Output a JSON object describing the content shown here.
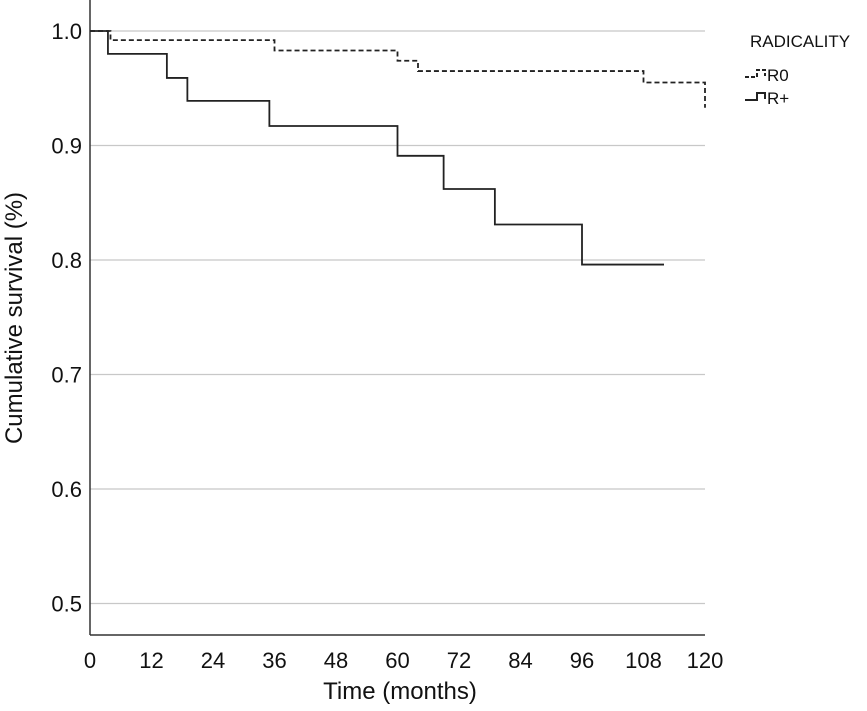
{
  "chart_data": {
    "type": "line",
    "subtype": "kaplan-meier step",
    "title": "",
    "xlabel": "Time (months)",
    "ylabel": "Cumulative survival (%)",
    "xlim": [
      0,
      120
    ],
    "ylim": [
      0.45,
      1.02
    ],
    "xticks": [
      "0",
      "12",
      "24",
      "36",
      "48",
      "60",
      "72",
      "84",
      "96",
      "108",
      "120"
    ],
    "yticks": [
      "0.5",
      "0.6",
      "0.7",
      "0.8",
      "0.9",
      "1.0"
    ],
    "grid": "horizontal",
    "legend": {
      "title": "RADICALITY",
      "position": "top-right outside"
    },
    "series": [
      {
        "name": "R0",
        "style": "dashed",
        "color": "#222222",
        "x": [
          0,
          4,
          36,
          60,
          64,
          108,
          120
        ],
        "y": [
          1.0,
          0.992,
          0.983,
          0.974,
          0.965,
          0.955,
          0.933
        ]
      },
      {
        "name": "R+",
        "style": "solid",
        "color": "#222222",
        "x": [
          0,
          3.5,
          15,
          19,
          35,
          60,
          69,
          79,
          96,
          112
        ],
        "y": [
          1.0,
          0.98,
          0.959,
          0.939,
          0.917,
          0.891,
          0.862,
          0.831,
          0.796,
          0.796
        ]
      }
    ]
  }
}
